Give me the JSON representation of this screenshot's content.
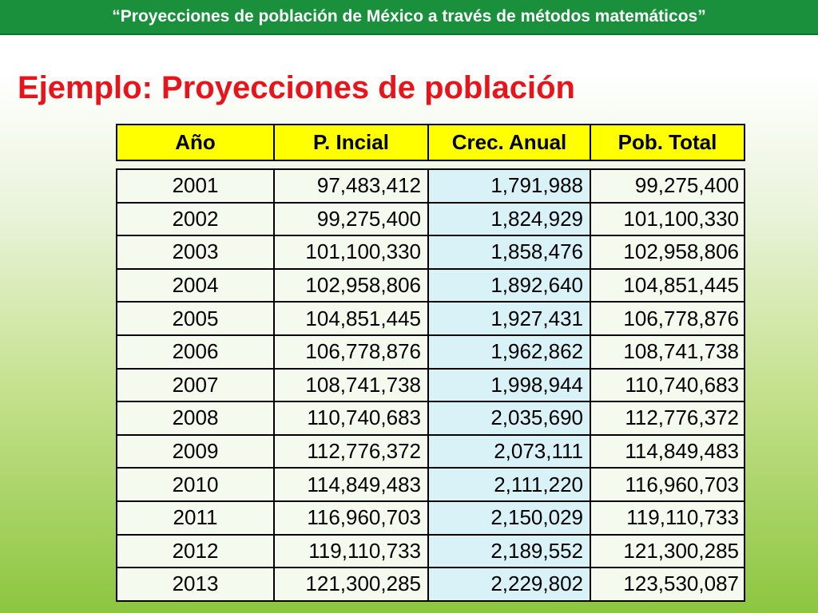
{
  "banner": {
    "text": "“Proyecciones de población de México a través de métodos matemáticos”"
  },
  "title": "Ejemplo: Proyecciones de población",
  "table": {
    "headers": [
      "Año",
      "P. Incial",
      "Crec. Anual",
      "Pob. Total"
    ],
    "rows": [
      [
        "2001",
        "97,483,412",
        "1,791,988",
        "99,275,400"
      ],
      [
        "2002",
        "99,275,400",
        "1,824,929",
        "101,100,330"
      ],
      [
        "2003",
        "101,100,330",
        "1,858,476",
        "102,958,806"
      ],
      [
        "2004",
        "102,958,806",
        "1,892,640",
        "104,851,445"
      ],
      [
        "2005",
        "104,851,445",
        "1,927,431",
        "106,778,876"
      ],
      [
        "2006",
        "106,778,876",
        "1,962,862",
        "108,741,738"
      ],
      [
        "2007",
        "108,741,738",
        "1,998,944",
        "110,740,683"
      ],
      [
        "2008",
        "110,740,683",
        "2,035,690",
        "112,776,372"
      ],
      [
        "2009",
        "112,776,372",
        "2,073,111",
        "114,849,483"
      ],
      [
        "2010",
        "114,849,483",
        "2,111,220",
        "116,960,703"
      ],
      [
        "2011",
        "116,960,703",
        "2,150,029",
        "119,110,733"
      ],
      [
        "2012",
        "119,110,733",
        "2,189,552",
        "121,300,285"
      ],
      [
        "2013",
        "121,300,285",
        "2,229,802",
        "123,530,087"
      ]
    ]
  },
  "colors": {
    "banner_bg": "#1a8f3c",
    "title": "#e8141b",
    "header_bg": "#ffff00",
    "crec_col_bg": "#d9f2f7",
    "cell_bg": "#f5faef"
  }
}
